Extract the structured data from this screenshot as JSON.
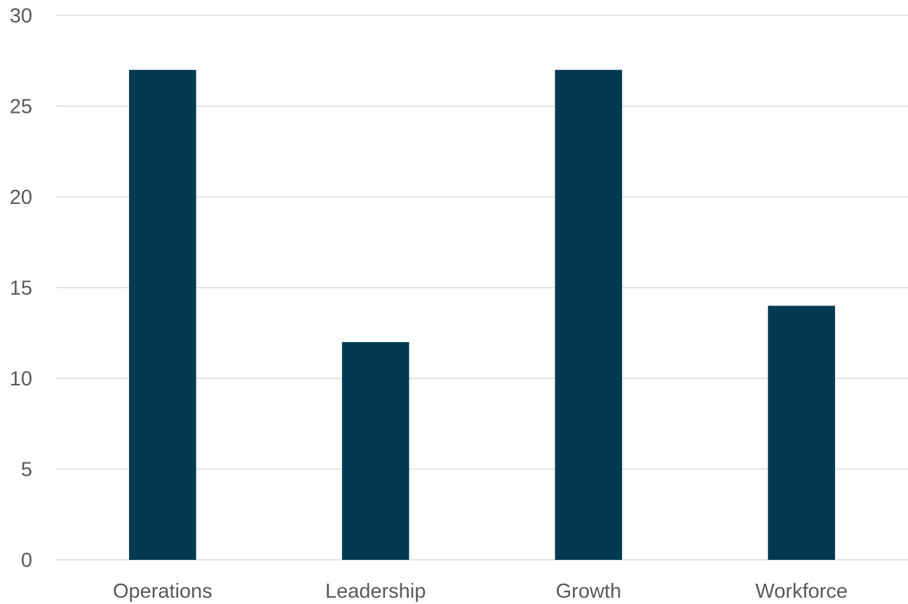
{
  "chart_data": {
    "type": "bar",
    "categories": [
      "Operations",
      "Leadership",
      "Growth",
      "Workforce"
    ],
    "values": [
      27,
      12,
      27,
      14
    ],
    "title": "",
    "xlabel": "",
    "ylabel": "",
    "ylim": [
      0,
      30
    ],
    "yticks": [
      0,
      5,
      10,
      15,
      20,
      25,
      30
    ],
    "ytick_labels": [
      "0",
      "5",
      "10",
      "15",
      "20",
      "25",
      "30"
    ],
    "grid": true,
    "legend": "none",
    "bar_color": "#013A52",
    "gridline_color": "#d9d9d9",
    "text_color": "#595959"
  }
}
